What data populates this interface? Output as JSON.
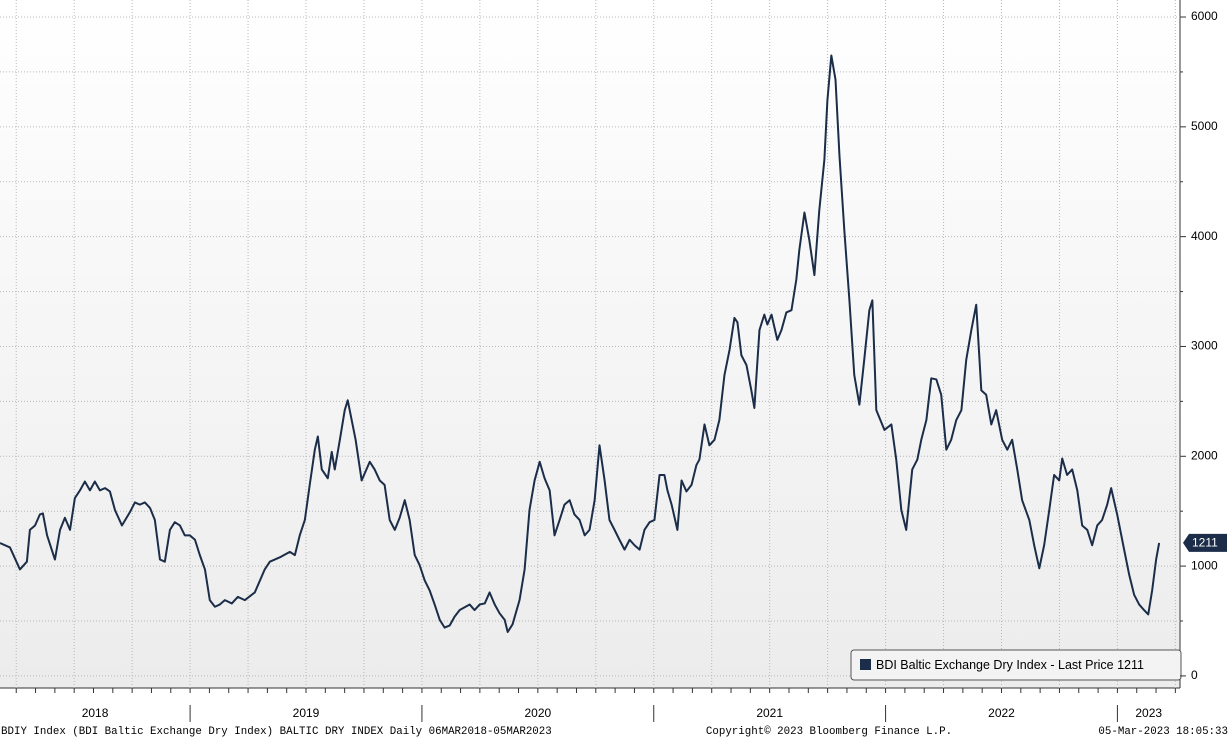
{
  "chart_data": {
    "type": "line",
    "series": [
      {
        "name": "BDI Baltic Exchange Dry Index - Last Price 1211",
        "color": "#1b2d48",
        "x": [
          2018.18,
          2018.223,
          2018.266,
          2018.296,
          2018.309,
          2018.331,
          2018.352,
          2018.365,
          2018.383,
          2018.417,
          2018.439,
          2018.46,
          2018.482,
          2018.503,
          2018.525,
          2018.546,
          2018.568,
          2018.589,
          2018.611,
          2018.633,
          2018.654,
          2018.676,
          2018.706,
          2018.74,
          2018.762,
          2018.783,
          2018.805,
          2018.827,
          2018.848,
          2018.87,
          2018.891,
          2018.913,
          2018.934,
          2018.956,
          2018.977,
          2018.999,
          2019.021,
          2019.042,
          2019.064,
          2019.085,
          2019.107,
          2019.128,
          2019.15,
          2019.18,
          2019.206,
          2019.236,
          2019.279,
          2019.322,
          2019.344,
          2019.387,
          2019.43,
          2019.452,
          2019.473,
          2019.495,
          2019.516,
          2019.538,
          2019.551,
          2019.568,
          2019.594,
          2019.611,
          2019.624,
          2019.646,
          2019.667,
          2019.68,
          2019.697,
          2019.714,
          2019.74,
          2019.775,
          2019.796,
          2019.818,
          2019.839,
          2019.861,
          2019.883,
          2019.904,
          2019.926,
          2019.947,
          2019.969,
          2019.99,
          2020.012,
          2020.033,
          2020.055,
          2020.077,
          2020.098,
          2020.12,
          2020.141,
          2020.163,
          2020.206,
          2020.227,
          2020.249,
          2020.271,
          2020.292,
          2020.314,
          2020.335,
          2020.357,
          2020.37,
          2020.391,
          2020.421,
          2020.443,
          2020.464,
          2020.486,
          2020.508,
          2020.529,
          2020.551,
          2020.572,
          2020.594,
          2020.615,
          2020.637,
          2020.658,
          2020.68,
          2020.702,
          2020.723,
          2020.745,
          2020.766,
          2020.788,
          2020.809,
          2020.831,
          2020.852,
          2020.874,
          2020.896,
          2020.917,
          2020.939,
          2020.96,
          2020.982,
          2021.003,
          2021.025,
          2021.046,
          2021.059,
          2021.077,
          2021.102,
          2021.12,
          2021.141,
          2021.163,
          2021.184,
          2021.197,
          2021.219,
          2021.24,
          2021.262,
          2021.283,
          2021.305,
          2021.327,
          2021.348,
          2021.361,
          2021.378,
          2021.4,
          2021.421,
          2021.434,
          2021.456,
          2021.477,
          2021.49,
          2021.508,
          2021.533,
          2021.551,
          2021.572,
          2021.594,
          2021.615,
          2021.628,
          2021.65,
          2021.671,
          2021.693,
          2021.714,
          2021.736,
          2021.749,
          2021.766,
          2021.784,
          2021.801,
          2021.822,
          2021.844,
          2021.865,
          2021.887,
          2021.908,
          2021.93,
          2021.943,
          2021.96,
          2021.995,
          2022.025,
          2022.046,
          2022.068,
          2022.089,
          2022.115,
          2022.137,
          2022.154,
          2022.176,
          2022.197,
          2022.219,
          2022.24,
          2022.262,
          2022.283,
          2022.305,
          2022.327,
          2022.348,
          2022.37,
          2022.391,
          2022.413,
          2022.434,
          2022.456,
          2022.477,
          2022.503,
          2022.525,
          2022.546,
          2022.568,
          2022.589,
          2022.62,
          2022.641,
          2022.663,
          2022.684,
          2022.706,
          2022.727,
          2022.749,
          2022.762,
          2022.783,
          2022.805,
          2022.827,
          2022.848,
          2022.87,
          2022.891,
          2022.913,
          2022.934,
          2022.956,
          2022.973,
          2022.999,
          2023.029,
          2023.051,
          2023.072,
          2023.094,
          2023.115,
          2023.133,
          2023.15,
          2023.167,
          2023.18
        ],
        "values": [
          1210,
          1170,
          970,
          1040,
          1330,
          1370,
          1470,
          1480,
          1280,
          1060,
          1330,
          1440,
          1330,
          1620,
          1690,
          1770,
          1690,
          1770,
          1690,
          1710,
          1680,
          1510,
          1370,
          1490,
          1580,
          1560,
          1580,
          1530,
          1420,
          1060,
          1040,
          1330,
          1400,
          1370,
          1280,
          1280,
          1240,
          1100,
          970,
          690,
          630,
          650,
          690,
          660,
          720,
          690,
          760,
          970,
          1040,
          1080,
          1130,
          1100,
          1280,
          1420,
          1740,
          2060,
          2180,
          1880,
          1800,
          2040,
          1880,
          2150,
          2420,
          2510,
          2330,
          2150,
          1780,
          1950,
          1880,
          1780,
          1740,
          1420,
          1330,
          1440,
          1600,
          1420,
          1100,
          1010,
          870,
          780,
          650,
          510,
          440,
          460,
          540,
          600,
          650,
          600,
          650,
          660,
          760,
          650,
          570,
          510,
          400,
          470,
          690,
          970,
          1510,
          1780,
          1950,
          1800,
          1690,
          1280,
          1420,
          1560,
          1600,
          1470,
          1420,
          1280,
          1330,
          1600,
          2100,
          1780,
          1420,
          1330,
          1240,
          1150,
          1240,
          1190,
          1150,
          1330,
          1400,
          1420,
          1830,
          1830,
          1690,
          1560,
          1330,
          1780,
          1680,
          1740,
          1920,
          1970,
          2290,
          2100,
          2150,
          2330,
          2740,
          2970,
          3260,
          3220,
          2920,
          2830,
          2600,
          2440,
          3150,
          3290,
          3200,
          3290,
          3060,
          3150,
          3310,
          3330,
          3610,
          3880,
          4220,
          3970,
          3650,
          4240,
          4700,
          5240,
          5650,
          5430,
          4740,
          4060,
          3420,
          2740,
          2470,
          2880,
          3330,
          3420,
          2420,
          2240,
          2290,
          1970,
          1510,
          1330,
          1880,
          1970,
          2150,
          2330,
          2710,
          2700,
          2560,
          2060,
          2150,
          2330,
          2420,
          2880,
          3150,
          3380,
          2600,
          2560,
          2290,
          2420,
          2150,
          2060,
          2150,
          1880,
          1600,
          1420,
          1190,
          980,
          1190,
          1510,
          1830,
          1780,
          1980,
          1830,
          1880,
          1690,
          1370,
          1330,
          1190,
          1370,
          1420,
          1560,
          1710,
          1470,
          1150,
          920,
          740,
          650,
          600,
          560,
          780,
          1060,
          1211
        ]
      }
    ],
    "xlim": [
      2018.18,
      2023.27
    ],
    "xticks": [
      {
        "value": 2018,
        "label": "2018"
      },
      {
        "value": 2019,
        "label": "2019"
      },
      {
        "value": 2020,
        "label": "2020"
      },
      {
        "value": 2021,
        "label": "2021"
      },
      {
        "value": 2022,
        "label": "2022"
      },
      {
        "value": 2023,
        "label": "2023"
      }
    ],
    "ylim": [
      -110,
      6155
    ],
    "yticks": [
      0,
      1000,
      2000,
      3000,
      4000,
      5000,
      6000
    ],
    "grid": true,
    "legend": "bottom-right",
    "footer_left": "BDIY Index (BDI Baltic Exchange Dry Index) BALTIC DRY INDEX  Daily 06MAR2018-05MAR2023",
    "footer_center": "Copyright© 2023 Bloomberg Finance L.P.",
    "footer_right": "05-Mar-2023 18:05:33"
  }
}
